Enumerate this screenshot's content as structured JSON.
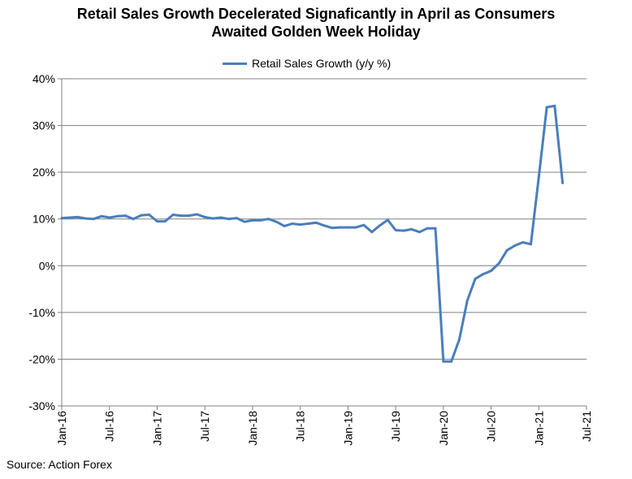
{
  "title_line1": "Retail Sales Growth Decelerated Signaficantly in April as Consumers",
  "title_line2": "Awaited Golden Week Holiday",
  "source": "Source: Action Forex",
  "chart_data": {
    "type": "line",
    "title": "Retail Sales Growth Decelerated Signaficantly in April as Consumers Awaited Golden Week Holiday",
    "series": [
      {
        "name": "Retail Sales Growth (y/y %)",
        "color": "#4a7ebb",
        "x": [
          "2016-01",
          "2016-02",
          "2016-03",
          "2016-04",
          "2016-05",
          "2016-06",
          "2016-07",
          "2016-08",
          "2016-09",
          "2016-10",
          "2016-11",
          "2016-12",
          "2017-01",
          "2017-02",
          "2017-03",
          "2017-04",
          "2017-05",
          "2017-06",
          "2017-07",
          "2017-08",
          "2017-09",
          "2017-10",
          "2017-11",
          "2017-12",
          "2018-01",
          "2018-02",
          "2018-03",
          "2018-04",
          "2018-05",
          "2018-06",
          "2018-07",
          "2018-08",
          "2018-09",
          "2018-10",
          "2018-11",
          "2018-12",
          "2019-01",
          "2019-02",
          "2019-03",
          "2019-04",
          "2019-05",
          "2019-06",
          "2019-07",
          "2019-08",
          "2019-09",
          "2019-10",
          "2019-11",
          "2019-12",
          "2020-01",
          "2020-02",
          "2020-03",
          "2020-04",
          "2020-05",
          "2020-06",
          "2020-07",
          "2020-08",
          "2020-09",
          "2020-10",
          "2020-11",
          "2020-12",
          "2021-01",
          "2021-02",
          "2021-03",
          "2021-04"
        ],
        "values": [
          10.2,
          10.3,
          10.4,
          10.1,
          10.0,
          10.6,
          10.3,
          10.6,
          10.7,
          10.0,
          10.8,
          10.9,
          9.5,
          9.5,
          10.9,
          10.7,
          10.7,
          11.0,
          10.4,
          10.1,
          10.3,
          10.0,
          10.2,
          9.4,
          9.7,
          9.7,
          10.0,
          9.4,
          8.5,
          9.0,
          8.8,
          9.0,
          9.2,
          8.6,
          8.1,
          8.2,
          8.2,
          8.2,
          8.7,
          7.2,
          8.6,
          9.8,
          7.6,
          7.5,
          7.8,
          7.2,
          8.0,
          8.0,
          -20.5,
          -20.5,
          -15.8,
          -7.5,
          -2.8,
          -1.8,
          -1.1,
          0.5,
          3.3,
          4.3,
          5.0,
          4.6,
          19.0,
          33.9,
          34.2,
          17.7
        ]
      }
    ],
    "y_ticks": [
      "40%",
      "30%",
      "20%",
      "10%",
      "0%",
      "-10%",
      "-20%",
      "-30%"
    ],
    "x_ticks": [
      "Jan-16",
      "Jul-16",
      "Jan-17",
      "Jul-17",
      "Jan-18",
      "Jul-18",
      "Jan-19",
      "Jul-19",
      "Jan-20",
      "Jul-20",
      "Jan-21",
      "Jul-21"
    ],
    "ylim": [
      -30,
      40
    ],
    "xlim": [
      "2016-01",
      "2021-07"
    ],
    "grid": true,
    "legend_position": "top-center"
  }
}
